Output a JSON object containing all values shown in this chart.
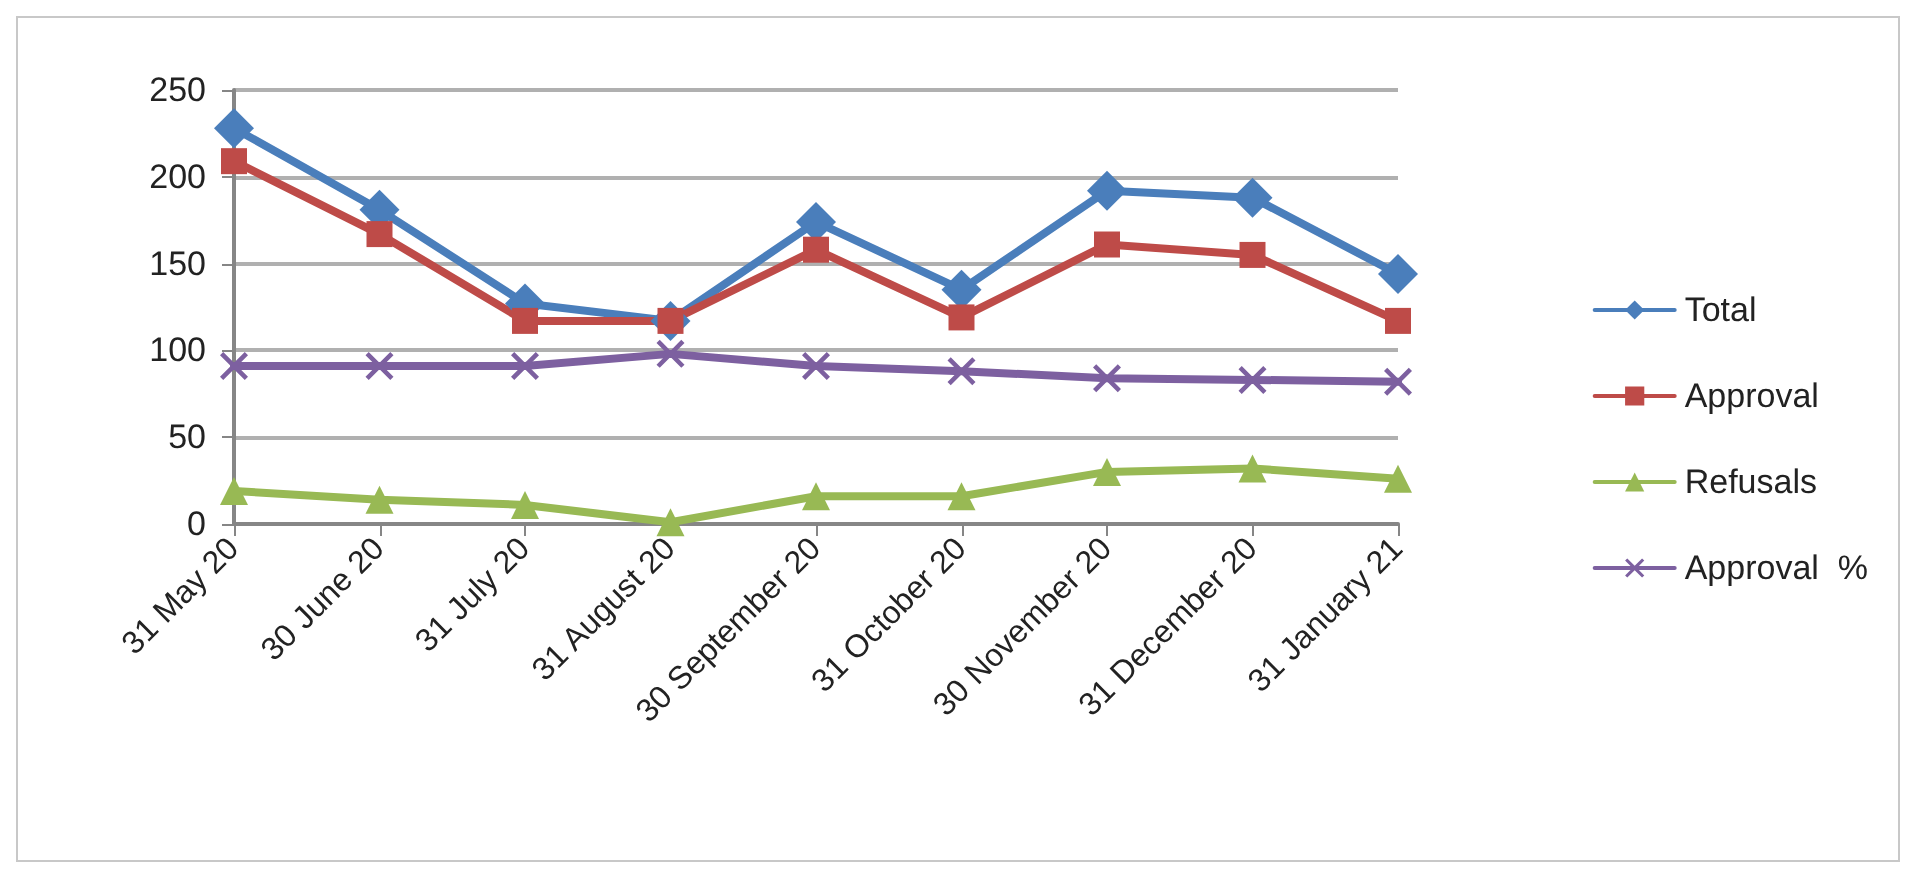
{
  "chart_data": {
    "type": "line",
    "categories": [
      "31 May 20",
      "30 June 20",
      "31 July 20",
      "31 August 20",
      "30 September 20",
      "31 October 20",
      "30 November 20",
      "31 December 20",
      "31 January 21"
    ],
    "series": [
      {
        "name": "Total",
        "color": "#4a7ebb",
        "marker": "diamond",
        "values": [
          228,
          181,
          127,
          117,
          174,
          135,
          192,
          188,
          144
        ]
      },
      {
        "name": "Approval",
        "color": "#be4b48",
        "marker": "square",
        "values": [
          209,
          167,
          117,
          117,
          158,
          119,
          161,
          155,
          117
        ]
      },
      {
        "name": "Refusals",
        "color": "#98b954",
        "marker": "triangle",
        "values": [
          19,
          14,
          11,
          1,
          16,
          16,
          30,
          32,
          26
        ]
      },
      {
        "name": "Approval  %",
        "color": "#7d60a0",
        "marker": "cross",
        "values": [
          91,
          91,
          91,
          98,
          91,
          88,
          84,
          83,
          82
        ]
      }
    ],
    "ylim": [
      0,
      250
    ],
    "yticks": [
      0,
      50,
      100,
      150,
      200,
      250
    ],
    "grid": "y",
    "legend": "right"
  }
}
